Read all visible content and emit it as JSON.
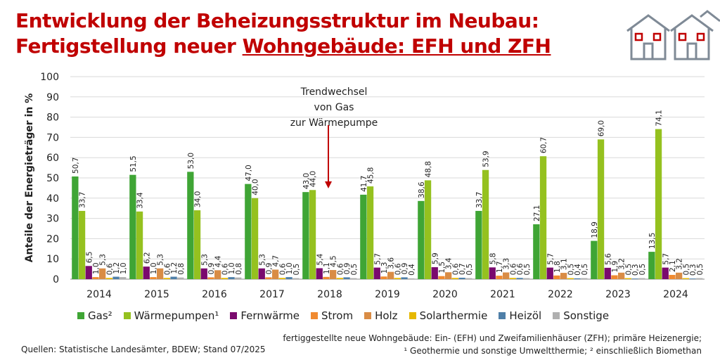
{
  "title": {
    "line1": "Entwicklung der Beheizungsstruktur im Neubau:",
    "line2_prefix": "Fertigstellung neuer ",
    "line2_underlined": "Wohngebäude: EFH und ZFH"
  },
  "annotation": {
    "lines": [
      "Trendwechsel",
      "von Gas",
      "zur Wärmepumpe"
    ],
    "arrow_color": "#c00000"
  },
  "source": "Quellen:  Statistische Landesämter, BDEW; Stand 07/2025",
  "notes": [
    "fertiggestellte neue Wohngebäude: Ein- (EFH) und Zweifamilienhäuser (ZFH); primäre Heizenergie;",
    "¹ Geothermie und sonstige Umweltthermie; ² einschließlich Biomethan"
  ],
  "chart_data": {
    "type": "bar",
    "title": "Entwicklung der Beheizungsstruktur im Neubau",
    "xlabel": "",
    "ylabel": "Anteile der Energieträger in %",
    "ylim": [
      0,
      100
    ],
    "yticks": [
      0,
      10,
      20,
      30,
      40,
      50,
      60,
      70,
      80,
      90,
      100
    ],
    "grid": true,
    "legend": "bottom",
    "categories": [
      "2014",
      "2015",
      "2016",
      "2017",
      "2018",
      "2019",
      "2020",
      "2021",
      "2022",
      "2023",
      "2024"
    ],
    "series": [
      {
        "name": "Gas²",
        "color": "#3fa535",
        "values": [
          50.7,
          51.5,
          53.0,
          47.0,
          43.0,
          41.7,
          38.6,
          33.7,
          27.1,
          18.9,
          13.5
        ]
      },
      {
        "name": "Wärmepumpen¹",
        "color": "#95c11f",
        "values": [
          33.7,
          33.4,
          34.0,
          40.0,
          44.0,
          45.8,
          48.8,
          53.9,
          60.7,
          69.0,
          74.1
        ]
      },
      {
        "name": "Fernwärme",
        "color": "#7a0a6e",
        "values": [
          6.5,
          6.2,
          5.3,
          5.3,
          5.4,
          5.7,
          5.9,
          5.8,
          5.7,
          5.6,
          5.7
        ]
      },
      {
        "name": "Strom",
        "color": "#f08a30",
        "values": [
          1.0,
          1.0,
          0.9,
          0.9,
          1.1,
          1.3,
          1.5,
          1.7,
          1.8,
          1.9,
          2.1
        ]
      },
      {
        "name": "Holz",
        "color": "#d98c45",
        "values": [
          5.3,
          5.3,
          4.4,
          4.7,
          4.5,
          3.6,
          3.4,
          3.3,
          3.1,
          3.2,
          3.2
        ]
      },
      {
        "name": "Solarthermie",
        "color": "#e6b800",
        "values": [
          0.6,
          0.6,
          0.6,
          0.6,
          0.6,
          0.6,
          0.6,
          0.6,
          0.5,
          0.5,
          0.5
        ]
      },
      {
        "name": "Heizöl",
        "color": "#4f7fa8",
        "values": [
          1.2,
          1.2,
          1.0,
          1.0,
          0.9,
          0.9,
          0.7,
          0.6,
          0.4,
          0.3,
          0.3
        ]
      },
      {
        "name": "Sonstige",
        "color": "#b0b0b0",
        "values": [
          1.0,
          0.8,
          0.8,
          0.5,
          0.5,
          0.4,
          0.5,
          0.5,
          0.5,
          0.5,
          0.5
        ]
      }
    ]
  }
}
